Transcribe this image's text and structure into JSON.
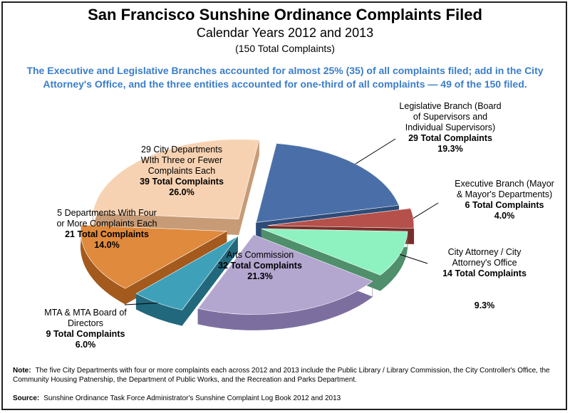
{
  "chart_data": {
    "type": "pie",
    "title": "San Francisco Sunshine Ordinance Complaints Filed",
    "subtitle": "Calendar Years 2012 and 2013",
    "subtitle2": "(150 Total Complaints)",
    "callout": "The Executive and Legislative Branches accounted for almost 25% (35) of all complaints filed; add in the City Attorney's Office, and the three entities accounted for one-third of all complaints — 49 of the 150 filed.",
    "slices": [
      {
        "name_lines": [
          "Legislative Branch (Board",
          "of Supervisors and",
          "Individual Supervisors)"
        ],
        "value": 29,
        "value_label": "29 Total Complaints",
        "pct_label": "19.3%",
        "color": "#4a6fa8",
        "side": "#2e4b78"
      },
      {
        "name_lines": [
          "Executive Branch (Mayor",
          "& Mayor's Departments)"
        ],
        "value": 6,
        "value_label": "6 Total Complaints",
        "pct_label": "4.0%",
        "color": "#b5504b",
        "side": "#7a2e2a"
      },
      {
        "name_lines": [
          "City Attorney / City",
          "Attorney's Office"
        ],
        "value": 14,
        "value_label": "14 Total Complaints",
        "pct_label": "9.3%",
        "color": "#8ef2c0",
        "side": "#4f8f6c"
      },
      {
        "name_lines": [
          "Arts Commission"
        ],
        "value": 32,
        "value_label": "32 Total Complaints",
        "pct_label": "21.3%",
        "color": "#b3a6cf",
        "side": "#7c6fa0"
      },
      {
        "name_lines": [
          "MTA & MTA Board of",
          "Directors"
        ],
        "value": 9,
        "value_label": "9 Total Complaints",
        "pct_label": "6.0%",
        "color": "#3fa0ba",
        "side": "#22687c"
      },
      {
        "name_lines": [
          "5 Departments With Four",
          "or More Complaints Each"
        ],
        "value": 21,
        "value_label": "21 Total Complaints",
        "pct_label": "14.0%",
        "color": "#e08a3e",
        "side": "#a35a1c"
      },
      {
        "name_lines": [
          "29 City Departments",
          "WIth Three or Fewer",
          "Complaints Each"
        ],
        "value": 39,
        "value_label": "39 Total Complaints",
        "pct_label": "26.0%",
        "color": "#f7d2b2",
        "side": "#c69b76"
      }
    ]
  },
  "note_label": "Note:",
  "note_text": "The five City Departments with four or more complaints each across 2012 and 2013 include the Public Library / Library Commission, the City Controller's Office, the Community Housing Patnership, the Department of Public Works, and the Recreation and Parks Department.",
  "source_label": "Source:",
  "source_text": "Sunshine Ordinance Task Force Administrator's Sunshine Complaint Log Book 2012 and 2013"
}
